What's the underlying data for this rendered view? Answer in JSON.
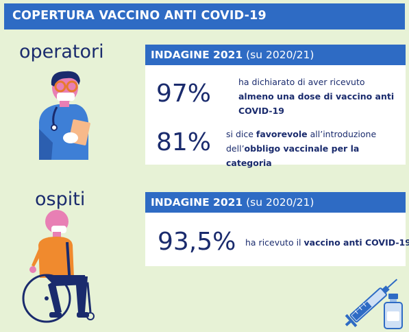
{
  "header": {
    "title": "COPERTURA VACCINO ANTI COVID-19"
  },
  "sections": {
    "operatori": {
      "label": "operatori",
      "card_title_bold": "INDAGINE 2021",
      "card_title_rest": " (su 2020/21)",
      "stats": [
        {
          "value": "97%",
          "line1": "ha dichiarato di aver ricevuto",
          "line2_bold": "almeno una dose di vaccino anti",
          "line3_bold": "COVID-19"
        },
        {
          "value": "81%",
          "line1_pre": "si dice ",
          "line1_bold": "favorevole",
          "line1_post": " all’introduzione",
          "line2_pre": "dell’",
          "line2_bold": "obbligo vaccinale per la categoria"
        }
      ]
    },
    "ospiti": {
      "label": "ospiti",
      "card_title_bold": "INDAGINE 2021",
      "card_title_rest": " (su 2020/21)",
      "stat": {
        "value": "93,5%",
        "pre": "ha ricevuto il ",
        "bold": "vaccino anti COVID-19"
      }
    }
  },
  "colors": {
    "background": "#e7f2d6",
    "header_blue": "#2e6bc4",
    "text_navy": "#1a2b6d"
  },
  "icons": [
    "doctor-illustration",
    "wheelchair-illustration",
    "syringe-icon",
    "vaccine-vial-icon"
  ]
}
